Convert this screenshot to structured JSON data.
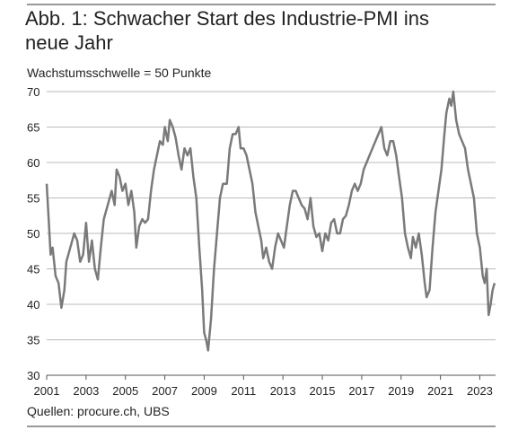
{
  "chart_data": {
    "type": "line",
    "title": "Abb. 1: Schwacher Start des Industrie-PMI ins neue Jahr",
    "subtitle": "Wachstumsschwelle = 50 Punkte",
    "source": "Quellen: procure.ch, UBS",
    "color": "#7a7a7a",
    "x": [
      2001.0,
      2001.1,
      2001.2,
      2001.3,
      2001.45,
      2001.6,
      2001.75,
      2001.9,
      2002.0,
      2002.2,
      2002.4,
      2002.55,
      2002.7,
      2002.85,
      2003.0,
      2003.15,
      2003.3,
      2003.45,
      2003.6,
      2003.75,
      2003.9,
      2004.1,
      2004.3,
      2004.45,
      2004.55,
      2004.7,
      2004.85,
      2005.0,
      2005.15,
      2005.3,
      2005.45,
      2005.55,
      2005.7,
      2005.85,
      2006.0,
      2006.15,
      2006.3,
      2006.45,
      2006.6,
      2006.75,
      2006.9,
      2007.0,
      2007.15,
      2007.25,
      2007.4,
      2007.55,
      2007.7,
      2007.85,
      2008.0,
      2008.15,
      2008.3,
      2008.45,
      2008.6,
      2008.75,
      2008.9,
      2009.0,
      2009.1,
      2009.2,
      2009.35,
      2009.5,
      2009.65,
      2009.8,
      2009.95,
      2010.15,
      2010.3,
      2010.45,
      2010.6,
      2010.75,
      2010.85,
      2011.0,
      2011.15,
      2011.3,
      2011.45,
      2011.6,
      2011.75,
      2011.9,
      2012.0,
      2012.15,
      2012.3,
      2012.45,
      2012.6,
      2012.75,
      2012.9,
      2013.05,
      2013.2,
      2013.35,
      2013.5,
      2013.65,
      2013.8,
      2013.95,
      2014.1,
      2014.25,
      2014.4,
      2014.55,
      2014.7,
      2014.85,
      2015.0,
      2015.15,
      2015.3,
      2015.45,
      2015.6,
      2015.75,
      2015.9,
      2016.05,
      2016.2,
      2016.35,
      2016.5,
      2016.65,
      2016.8,
      2016.95,
      2017.1,
      2017.25,
      2017.4,
      2017.55,
      2017.7,
      2017.85,
      2018.0,
      2018.15,
      2018.3,
      2018.45,
      2018.6,
      2018.75,
      2018.9,
      2019.05,
      2019.2,
      2019.35,
      2019.5,
      2019.6,
      2019.75,
      2019.9,
      2020.05,
      2020.2,
      2020.3,
      2020.45,
      2020.6,
      2020.75,
      2020.9,
      2021.05,
      2021.2,
      2021.3,
      2021.45,
      2021.55,
      2021.65,
      2021.8,
      2021.95,
      2022.1,
      2022.25,
      2022.4,
      2022.55,
      2022.7,
      2022.85,
      2023.0,
      2023.15,
      2023.25,
      2023.35,
      2023.45,
      2023.55,
      2023.65,
      2023.75
    ],
    "values": [
      57,
      52,
      47,
      48,
      44,
      43,
      39.5,
      42,
      46,
      48,
      50,
      49,
      46,
      47,
      51.5,
      46,
      49,
      45,
      43.5,
      48,
      52,
      54,
      56,
      54,
      59,
      58,
      56,
      57,
      54,
      56,
      53,
      48,
      51,
      52,
      51.5,
      52,
      56,
      59,
      61,
      63,
      62.5,
      65,
      63,
      66,
      65,
      63.5,
      61,
      59,
      62,
      61,
      62,
      58,
      55,
      48,
      42,
      36,
      35,
      33.5,
      38,
      45,
      50,
      55,
      57,
      57,
      62,
      64,
      64,
      65,
      62,
      62,
      61,
      59,
      57,
      53,
      51,
      49,
      46.5,
      48,
      46,
      45,
      48,
      50,
      49,
      48,
      51,
      54,
      56,
      56,
      55,
      54,
      53.5,
      52,
      55,
      51,
      49.5,
      50,
      47.5,
      50,
      49,
      51.5,
      52,
      50,
      50,
      52,
      52.5,
      54,
      56,
      57,
      56,
      57,
      59,
      60,
      61,
      62,
      63,
      64,
      65,
      62,
      61,
      63,
      63,
      61,
      58,
      55,
      50,
      48,
      46.5,
      49.5,
      48,
      50,
      47,
      43,
      41,
      42,
      48,
      53,
      56,
      59,
      64,
      67,
      69,
      68,
      70,
      66,
      64,
      63,
      62,
      59,
      57,
      55,
      50,
      48,
      44,
      43,
      45,
      38.5,
      40,
      42,
      43
    ],
    "xlim": [
      2001,
      2023.8
    ],
    "ylim": [
      30,
      70
    ],
    "xticks": [
      2001,
      2003,
      2005,
      2007,
      2009,
      2011,
      2013,
      2015,
      2017,
      2019,
      2021,
      2023
    ],
    "yticks": [
      30,
      35,
      40,
      45,
      50,
      55,
      60,
      65,
      70
    ],
    "grid": true
  }
}
